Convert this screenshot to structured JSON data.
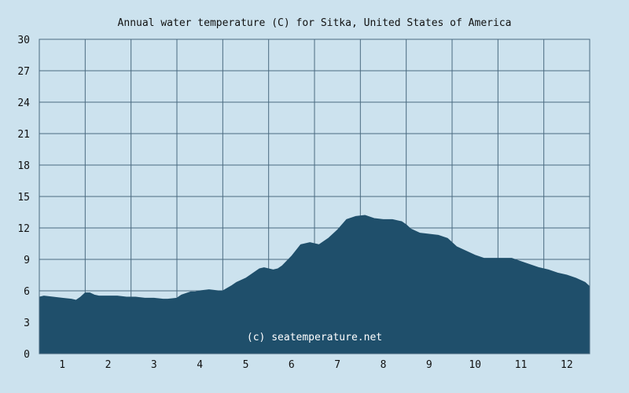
{
  "chart_data": {
    "type": "area",
    "title": "Annual water temperature (C) for Sitka, United States of America",
    "xlabel": "",
    "ylabel": "",
    "ylim": [
      0,
      30
    ],
    "y_ticks": [
      0,
      3,
      6,
      9,
      12,
      15,
      18,
      21,
      24,
      27,
      30
    ],
    "x_ticks": [
      "1",
      "2",
      "3",
      "4",
      "5",
      "6",
      "7",
      "8",
      "9",
      "10",
      "11",
      "12"
    ],
    "xlim": [
      0.5,
      12.5
    ],
    "grid": true,
    "watermark": "(c) seatemperature.net",
    "colors": {
      "background": "#cce2ee",
      "plot_background": "#cce2ee",
      "grid": "#4a6a80",
      "fill": "#1f4f6b"
    },
    "series": [
      {
        "x": [
          0.5,
          0.6,
          0.8,
          1.0,
          1.2,
          1.3,
          1.4,
          1.5,
          1.6,
          1.7,
          1.8,
          1.9,
          2.0,
          2.2,
          2.4,
          2.6,
          2.8,
          3.0,
          3.2,
          3.3,
          3.5,
          3.6,
          3.8,
          3.9,
          4.0,
          4.2,
          4.4,
          4.5,
          4.7,
          4.8,
          5.0,
          5.1,
          5.3,
          5.4,
          5.6,
          5.7,
          5.8,
          6.0,
          6.2,
          6.4,
          6.6,
          6.8,
          7.0,
          7.2,
          7.4,
          7.6,
          7.8,
          8.0,
          8.1,
          8.2,
          8.4,
          8.5,
          8.6,
          8.8,
          9.0,
          9.2,
          9.4,
          9.6,
          9.8,
          10.0,
          10.2,
          10.4,
          10.6,
          10.8,
          11.0,
          11.2,
          11.4,
          11.6,
          11.8,
          12.0,
          12.2,
          12.4,
          12.5
        ],
        "values": [
          5.4,
          5.5,
          5.4,
          5.3,
          5.2,
          5.1,
          5.4,
          5.8,
          5.8,
          5.6,
          5.5,
          5.5,
          5.5,
          5.5,
          5.4,
          5.4,
          5.3,
          5.3,
          5.2,
          5.2,
          5.3,
          5.6,
          5.9,
          5.9,
          6.0,
          6.1,
          6.0,
          6.0,
          6.5,
          6.8,
          7.2,
          7.5,
          8.1,
          8.2,
          8.0,
          8.1,
          8.4,
          9.3,
          10.4,
          10.6,
          10.4,
          11.0,
          11.8,
          12.8,
          13.1,
          13.2,
          12.9,
          12.8,
          12.8,
          12.8,
          12.6,
          12.3,
          11.9,
          11.5,
          11.4,
          11.3,
          11.0,
          10.2,
          9.8,
          9.4,
          9.1,
          9.1,
          9.1,
          9.1,
          8.8,
          8.5,
          8.2,
          8.0,
          7.7,
          7.5,
          7.2,
          6.8,
          6.4
        ]
      }
    ]
  }
}
